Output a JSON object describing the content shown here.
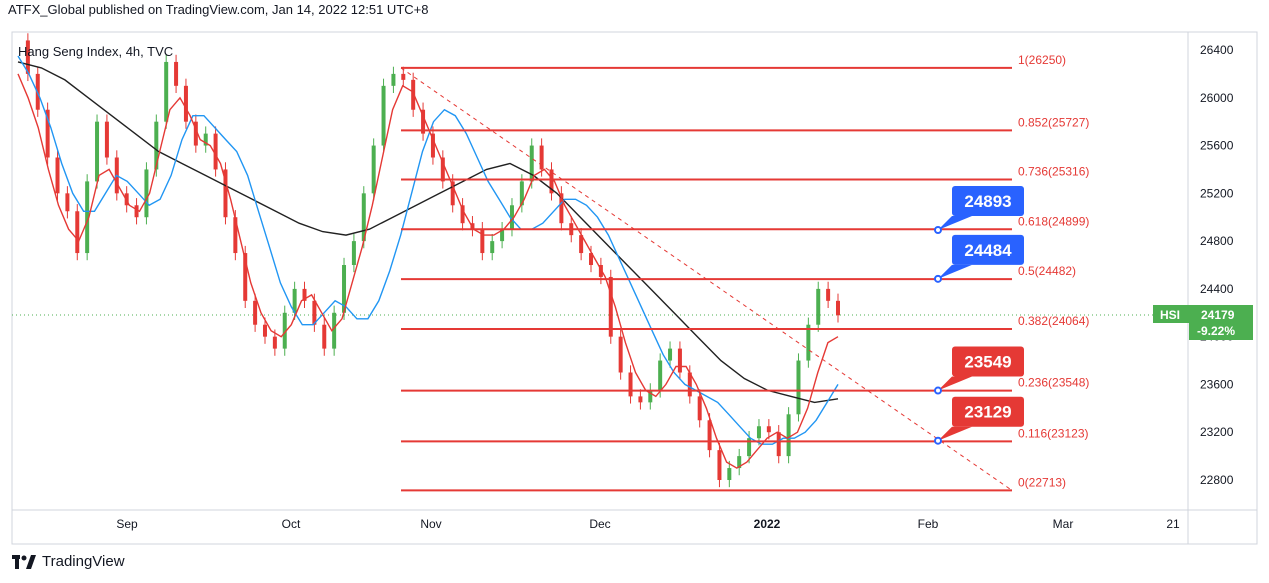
{
  "publish_line": "ATFX_Global published on TradingView.com, Jan 14, 2022 12:51 UTC+8",
  "footer_brand": "TradingView",
  "colors": {
    "up": "#4caf50",
    "down": "#e53935",
    "fib": "#e53935",
    "ma_fast": "#e53935",
    "ma_mid": "#2196f3",
    "ma_slow": "#212121",
    "blue_callout": "#2962ff",
    "red_callout": "#e53935",
    "price_badge": "#4caf50"
  },
  "chart_data": {
    "type": "candlestick",
    "title": "Hang Seng Index, 4h, TVC",
    "symbol": "HSI",
    "last_price": "24179",
    "change_pct": "-9.22%",
    "ylim": [
      22600,
      26600
    ],
    "y_ticks": [
      "26400",
      "26000",
      "25600",
      "25200",
      "24800",
      "24400",
      "24000",
      "23600",
      "23200",
      "22800"
    ],
    "x_ticks": [
      "Sep",
      "Oct",
      "Nov",
      "Dec",
      "2022",
      "Feb",
      "Mar",
      "21"
    ],
    "fib_levels": [
      {
        "ratio": "1",
        "price": 26250,
        "label": "1(26250)"
      },
      {
        "ratio": "0.852",
        "price": 25727,
        "label": "0.852(25727)"
      },
      {
        "ratio": "0.736",
        "price": 25316,
        "label": "0.736(25316)"
      },
      {
        "ratio": "0.618",
        "price": 24899,
        "label": "0.618(24899)"
      },
      {
        "ratio": "0.5",
        "price": 24482,
        "label": "0.5(24482)"
      },
      {
        "ratio": "0.382",
        "price": 24064,
        "label": "0.382(24064)"
      },
      {
        "ratio": "0.236",
        "price": 23548,
        "label": "0.236(23548)"
      },
      {
        "ratio": "0.116",
        "price": 23123,
        "label": "0.116(23123)"
      },
      {
        "ratio": "0",
        "price": 22713,
        "label": "0(22713)"
      }
    ],
    "callouts": [
      {
        "text": "24893",
        "price": 24893,
        "color": "blue"
      },
      {
        "text": "24484",
        "price": 24484,
        "color": "blue"
      },
      {
        "text": "23549",
        "price": 23549,
        "color": "red"
      },
      {
        "text": "23129",
        "price": 23129,
        "color": "red"
      }
    ],
    "trendline": {
      "from_price": 26250,
      "to_price": 22713
    },
    "close_series": [
      26480,
      26200,
      25900,
      25500,
      25200,
      25050,
      24700,
      25300,
      25800,
      25500,
      25200,
      25100,
      25000,
      25400,
      25800,
      26300,
      26100,
      25800,
      25600,
      25700,
      25400,
      25000,
      24700,
      24300,
      24100,
      24000,
      23900,
      24200,
      24400,
      24300,
      24100,
      23900,
      24200,
      24600,
      24800,
      25200,
      25600,
      26100,
      26200,
      26150,
      25900,
      25700,
      25500,
      25300,
      25100,
      24950,
      24900,
      24700,
      24800,
      24900,
      25100,
      25300,
      25600,
      25400,
      25200,
      24950,
      24850,
      24700,
      24600,
      24500,
      24000,
      23700,
      23500,
      23450,
      23550,
      23800,
      23900,
      23700,
      23500,
      23300,
      23050,
      22800,
      22900,
      23000,
      23150,
      23250,
      23200,
      23000,
      23350,
      23800,
      24100,
      24400,
      24300,
      24179
    ],
    "ma_fast": [
      26200,
      26000,
      25750,
      25400,
      25100,
      24900,
      24800,
      25000,
      25350,
      25400,
      25250,
      25100,
      25050,
      25200,
      25550,
      25900,
      26000,
      25850,
      25650,
      25600,
      25450,
      25150,
      24800,
      24450,
      24200,
      24050,
      24000,
      24100,
      24300,
      24350,
      24200,
      24050,
      24150,
      24450,
      24750,
      25100,
      25500,
      25900,
      26100,
      26050,
      25850,
      25650,
      25450,
      25250,
      25050,
      24900,
      24850,
      24850,
      24900,
      25000,
      25150,
      25350,
      25400,
      25300,
      25100,
      24950,
      24800,
      24650,
      24500,
      24250,
      23950,
      23700,
      23550,
      23500,
      23600,
      23750,
      23750,
      23600,
      23400,
      23150,
      22950,
      22900,
      22950,
      23050,
      23150,
      23200,
      23150,
      23200,
      23400,
      23700,
      23950,
      24000
    ],
    "ma_mid": [
      26350,
      26200,
      26000,
      25750,
      25450,
      25200,
      25050,
      25050,
      25200,
      25350,
      25300,
      25200,
      25100,
      25150,
      25350,
      25650,
      25850,
      25850,
      25750,
      25650,
      25550,
      25350,
      25050,
      24750,
      24450,
      24250,
      24100,
      24100,
      24200,
      24300,
      24250,
      24150,
      24150,
      24300,
      24550,
      24850,
      25200,
      25550,
      25800,
      25900,
      25850,
      25700,
      25500,
      25300,
      25150,
      25000,
      24900,
      24900,
      24950,
      25050,
      25150,
      25150,
      25100,
      25000,
      24850,
      24650,
      24450,
      24250,
      24050,
      23850,
      23700,
      23600,
      23550,
      23500,
      23450,
      23350,
      23250,
      23150,
      23100,
      23100,
      23150,
      23150,
      23200,
      23300,
      23450,
      23600
    ],
    "ma_slow": [
      26300,
      26250,
      26150,
      26000,
      25850,
      25700,
      25550,
      25450,
      25350,
      25250,
      25150,
      25050,
      24950,
      24880,
      24850,
      24900,
      25000,
      25100,
      25200,
      25300,
      25400,
      25450,
      25350,
      25200,
      25000,
      24800,
      24600,
      24400,
      24200,
      24000,
      23800,
      23650,
      23550,
      23500,
      23450,
      23480
    ]
  }
}
